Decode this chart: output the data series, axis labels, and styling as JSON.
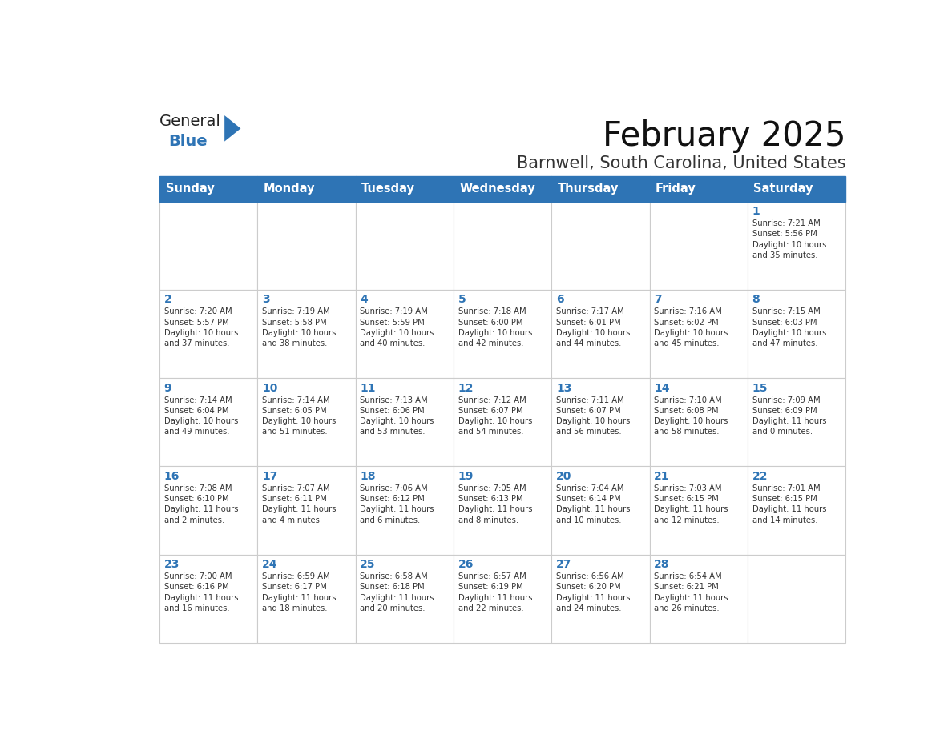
{
  "title": "February 2025",
  "subtitle": "Barnwell, South Carolina, United States",
  "header_bg": "#2E74B5",
  "header_text_color": "#FFFFFF",
  "day_names": [
    "Sunday",
    "Monday",
    "Tuesday",
    "Wednesday",
    "Thursday",
    "Friday",
    "Saturday"
  ],
  "cell_bg": "#FFFFFF",
  "cell_border": "#CCCCCC",
  "day_num_color": "#2E74B5",
  "info_color": "#333333",
  "logo_general_color": "#222222",
  "logo_blue_color": "#2E74B5",
  "weeks": [
    [
      {
        "day": "",
        "info": ""
      },
      {
        "day": "",
        "info": ""
      },
      {
        "day": "",
        "info": ""
      },
      {
        "day": "",
        "info": ""
      },
      {
        "day": "",
        "info": ""
      },
      {
        "day": "",
        "info": ""
      },
      {
        "day": "1",
        "info": "Sunrise: 7:21 AM\nSunset: 5:56 PM\nDaylight: 10 hours\nand 35 minutes."
      }
    ],
    [
      {
        "day": "2",
        "info": "Sunrise: 7:20 AM\nSunset: 5:57 PM\nDaylight: 10 hours\nand 37 minutes."
      },
      {
        "day": "3",
        "info": "Sunrise: 7:19 AM\nSunset: 5:58 PM\nDaylight: 10 hours\nand 38 minutes."
      },
      {
        "day": "4",
        "info": "Sunrise: 7:19 AM\nSunset: 5:59 PM\nDaylight: 10 hours\nand 40 minutes."
      },
      {
        "day": "5",
        "info": "Sunrise: 7:18 AM\nSunset: 6:00 PM\nDaylight: 10 hours\nand 42 minutes."
      },
      {
        "day": "6",
        "info": "Sunrise: 7:17 AM\nSunset: 6:01 PM\nDaylight: 10 hours\nand 44 minutes."
      },
      {
        "day": "7",
        "info": "Sunrise: 7:16 AM\nSunset: 6:02 PM\nDaylight: 10 hours\nand 45 minutes."
      },
      {
        "day": "8",
        "info": "Sunrise: 7:15 AM\nSunset: 6:03 PM\nDaylight: 10 hours\nand 47 minutes."
      }
    ],
    [
      {
        "day": "9",
        "info": "Sunrise: 7:14 AM\nSunset: 6:04 PM\nDaylight: 10 hours\nand 49 minutes."
      },
      {
        "day": "10",
        "info": "Sunrise: 7:14 AM\nSunset: 6:05 PM\nDaylight: 10 hours\nand 51 minutes."
      },
      {
        "day": "11",
        "info": "Sunrise: 7:13 AM\nSunset: 6:06 PM\nDaylight: 10 hours\nand 53 minutes."
      },
      {
        "day": "12",
        "info": "Sunrise: 7:12 AM\nSunset: 6:07 PM\nDaylight: 10 hours\nand 54 minutes."
      },
      {
        "day": "13",
        "info": "Sunrise: 7:11 AM\nSunset: 6:07 PM\nDaylight: 10 hours\nand 56 minutes."
      },
      {
        "day": "14",
        "info": "Sunrise: 7:10 AM\nSunset: 6:08 PM\nDaylight: 10 hours\nand 58 minutes."
      },
      {
        "day": "15",
        "info": "Sunrise: 7:09 AM\nSunset: 6:09 PM\nDaylight: 11 hours\nand 0 minutes."
      }
    ],
    [
      {
        "day": "16",
        "info": "Sunrise: 7:08 AM\nSunset: 6:10 PM\nDaylight: 11 hours\nand 2 minutes."
      },
      {
        "day": "17",
        "info": "Sunrise: 7:07 AM\nSunset: 6:11 PM\nDaylight: 11 hours\nand 4 minutes."
      },
      {
        "day": "18",
        "info": "Sunrise: 7:06 AM\nSunset: 6:12 PM\nDaylight: 11 hours\nand 6 minutes."
      },
      {
        "day": "19",
        "info": "Sunrise: 7:05 AM\nSunset: 6:13 PM\nDaylight: 11 hours\nand 8 minutes."
      },
      {
        "day": "20",
        "info": "Sunrise: 7:04 AM\nSunset: 6:14 PM\nDaylight: 11 hours\nand 10 minutes."
      },
      {
        "day": "21",
        "info": "Sunrise: 7:03 AM\nSunset: 6:15 PM\nDaylight: 11 hours\nand 12 minutes."
      },
      {
        "day": "22",
        "info": "Sunrise: 7:01 AM\nSunset: 6:15 PM\nDaylight: 11 hours\nand 14 minutes."
      }
    ],
    [
      {
        "day": "23",
        "info": "Sunrise: 7:00 AM\nSunset: 6:16 PM\nDaylight: 11 hours\nand 16 minutes."
      },
      {
        "day": "24",
        "info": "Sunrise: 6:59 AM\nSunset: 6:17 PM\nDaylight: 11 hours\nand 18 minutes."
      },
      {
        "day": "25",
        "info": "Sunrise: 6:58 AM\nSunset: 6:18 PM\nDaylight: 11 hours\nand 20 minutes."
      },
      {
        "day": "26",
        "info": "Sunrise: 6:57 AM\nSunset: 6:19 PM\nDaylight: 11 hours\nand 22 minutes."
      },
      {
        "day": "27",
        "info": "Sunrise: 6:56 AM\nSunset: 6:20 PM\nDaylight: 11 hours\nand 24 minutes."
      },
      {
        "day": "28",
        "info": "Sunrise: 6:54 AM\nSunset: 6:21 PM\nDaylight: 11 hours\nand 26 minutes."
      },
      {
        "day": "",
        "info": ""
      }
    ]
  ]
}
